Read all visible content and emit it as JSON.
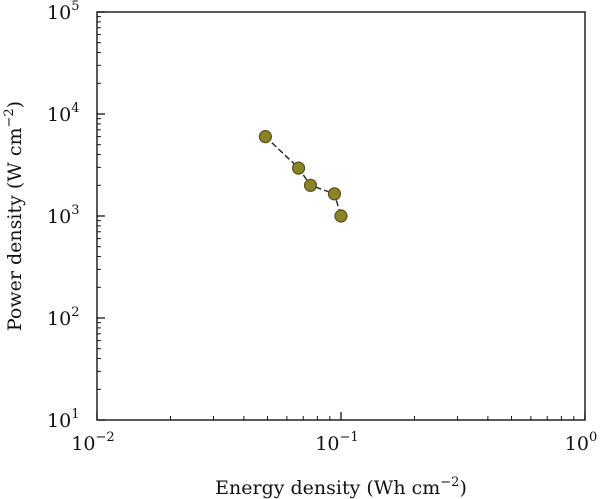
{
  "chart_data": {
    "type": "line",
    "xlabel": "Energy density (Wh cm",
    "xlabel_exp": "−2",
    "xlabel_close": ")",
    "ylabel": "Power density (W cm",
    "ylabel_exp": "−2",
    "ylabel_close": ")",
    "x_scale": "log",
    "y_scale": "log",
    "xlim": [
      0.01,
      1
    ],
    "ylim": [
      10,
      100000
    ],
    "x_ticks": [
      {
        "value": 0.01,
        "base": "10",
        "exp": "−2"
      },
      {
        "value": 0.1,
        "base": "10",
        "exp": "−1"
      },
      {
        "value": 1,
        "base": "10",
        "exp": "0"
      }
    ],
    "y_ticks": [
      {
        "value": 10,
        "base": "10",
        "exp": "1"
      },
      {
        "value": 100,
        "base": "10",
        "exp": "2"
      },
      {
        "value": 1000,
        "base": "10",
        "exp": "3"
      },
      {
        "value": 10000,
        "base": "10",
        "exp": "4"
      },
      {
        "value": 100000,
        "base": "10",
        "exp": "5"
      }
    ],
    "grid": false,
    "marker_color": "#8c8424",
    "series": [
      {
        "x": [
          0.049,
          0.067,
          0.075,
          0.094,
          0.1
        ],
        "y": [
          6000,
          2950,
          2000,
          1650,
          1000
        ]
      }
    ]
  }
}
